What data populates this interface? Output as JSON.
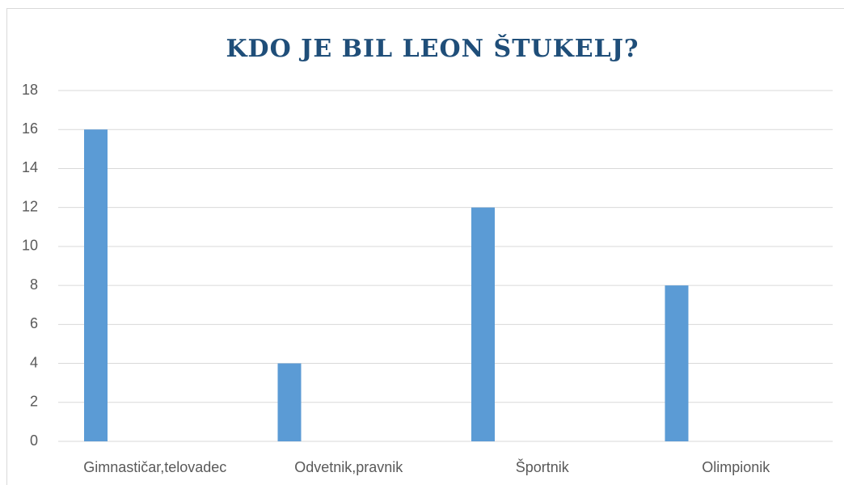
{
  "chart_data": {
    "type": "bar",
    "title": "KDO JE BIL LEON ŠTUKELJ?",
    "categories": [
      "Gimnastičar,telovadec",
      "Odvetnik,pravnik",
      "Športnik",
      "Olimpionik"
    ],
    "values": [
      16,
      4,
      12,
      8
    ],
    "color": "#5b9bd5",
    "ylim": [
      0,
      18
    ],
    "yticks": [
      0,
      2,
      4,
      6,
      8,
      10,
      12,
      14,
      16,
      18
    ],
    "grid": true
  }
}
